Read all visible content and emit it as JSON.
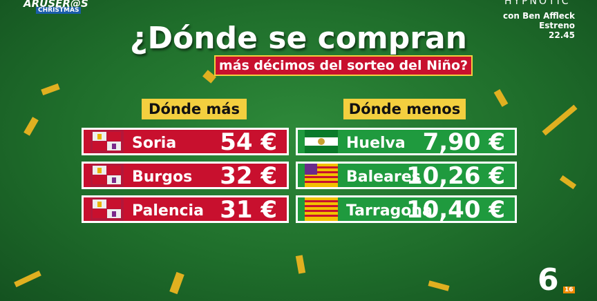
{
  "header": {
    "title": "¿Dónde se compran",
    "subtitle": "más décimos del sorteo del Niño?"
  },
  "logo": {
    "line1": "ARUSER@S",
    "line2": "CHRISTMAS"
  },
  "promo": {
    "title": "HYPNOTIC",
    "line1": "con Ben Affleck",
    "line2": "Estreno",
    "time": "22.45"
  },
  "channel": {
    "name": "6",
    "rating": "16"
  },
  "tables": [
    {
      "heading": "Dónde más",
      "rows": [
        {
          "region": "Soria",
          "price": "54 €"
        },
        {
          "region": "Burgos",
          "price": "32 €"
        },
        {
          "region": "Palencia",
          "price": "31 €"
        }
      ]
    },
    {
      "heading": "Dónde menos",
      "rows": [
        {
          "region": "Huelva",
          "price": "7,90 €"
        },
        {
          "region": "Baleares",
          "price": "10,26 €"
        },
        {
          "region": "Tarragona",
          "price": "10,40 €"
        }
      ]
    }
  ]
}
